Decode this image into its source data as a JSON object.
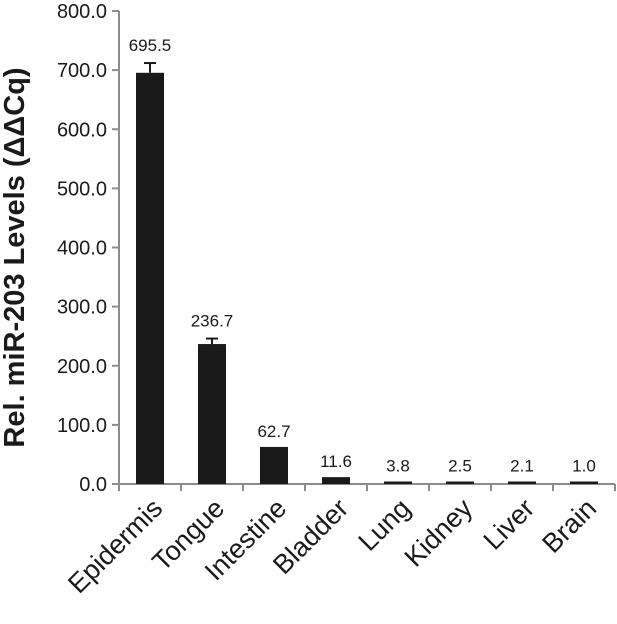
{
  "chart_data": {
    "type": "bar",
    "title": "",
    "xlabel": "",
    "ylabel": "Rel. miR-203 Levels (ΔΔCq)",
    "categories": [
      "Epidermis",
      "Tongue",
      "Intestine",
      "Bladder",
      "Lung",
      "Kidney",
      "Liver",
      "Brain"
    ],
    "values": [
      695.5,
      236.7,
      62.7,
      11.6,
      3.8,
      2.5,
      2.1,
      1.0
    ],
    "data_labels": [
      "695.5",
      "236.7",
      "62.7",
      "11.6",
      "3.8",
      "2.5",
      "2.1",
      "1.0"
    ],
    "error_upper": [
      712,
      246,
      null,
      null,
      null,
      null,
      null,
      null
    ],
    "ylim": [
      0,
      800
    ],
    "yticks": [
      0,
      100,
      200,
      300,
      400,
      500,
      600,
      700,
      800
    ],
    "ytick_labels": [
      "0.0",
      "100.0",
      "200.0",
      "300.0",
      "400.0",
      "500.0",
      "600.0",
      "700.0",
      "800.0"
    ],
    "grid": false,
    "legend": "none",
    "bar_color": "#1a1a1a",
    "axis_color": "#8c8c8c"
  }
}
